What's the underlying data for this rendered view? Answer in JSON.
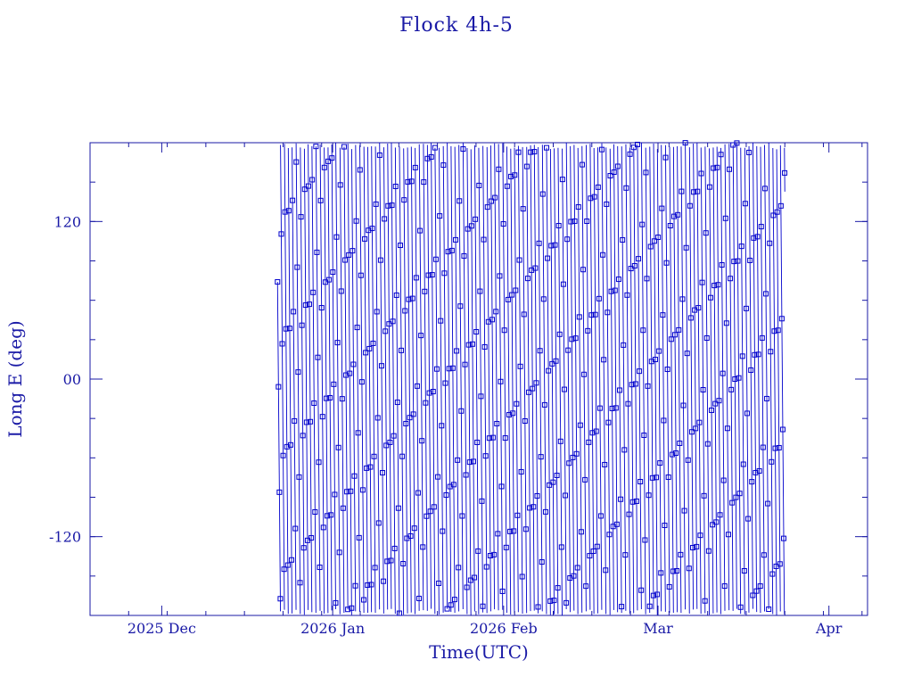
{
  "chart_data": {
    "type": "line",
    "title": "Flock 4h-5",
    "xlabel": "Time(UTC)",
    "ylabel": "Long E (deg)",
    "ylim": [
      -180,
      180
    ],
    "xlim": [
      "2025-11-18",
      "2026-04-08"
    ],
    "x_ticks": [
      {
        "date": "2025-12-01",
        "label": "2025 Dec"
      },
      {
        "date": "2026-01-01",
        "label": "2026 Jan"
      },
      {
        "date": "2026-02-01",
        "label": "2026 Feb"
      },
      {
        "date": "2026-03-01",
        "label": "Mar"
      },
      {
        "date": "2026-04-01",
        "label": "Apr"
      }
    ],
    "y_ticks": [
      {
        "value": 120,
        "label": "120"
      },
      {
        "value": 0,
        "label": "00"
      },
      {
        "value": -120,
        "label": "-120"
      }
    ],
    "grid": false,
    "series": [
      {
        "data_range": [
          "2025-12-22",
          "2026-03-24"
        ],
        "start_long_deg": 74,
        "end_long_deg": -36,
        "drift_deg_per_day": -500,
        "note": "longitude wraps between -180 and 180; square markers along the trace"
      }
    ]
  },
  "colors": {
    "axes": "#1a1aa6",
    "trace": "#0000cc",
    "marker": "#0000cc"
  }
}
